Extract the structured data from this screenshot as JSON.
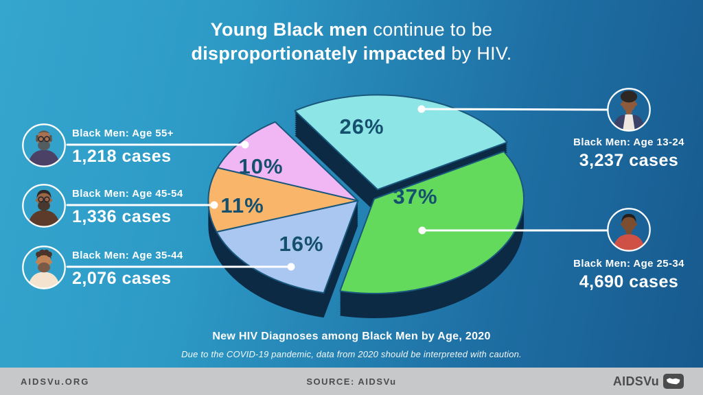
{
  "page": {
    "title_line1_bold": "Young Black men",
    "title_line1_rest": " continue to be",
    "title_line2_bold": "disproportionately impacted",
    "title_line2_rest": " by HIV."
  },
  "caption": {
    "heading": "New HIV Diagnoses among Black Men by Age, 2020",
    "note": "Due to the COVID-19 pandemic, data from 2020 should be interpreted with caution."
  },
  "footer": {
    "site": "AIDSVu.ORG",
    "source": "SOURCE: AIDSVu",
    "brand": "AIDSVu",
    "brand_icon": "us-map-logo-icon"
  },
  "colors": {
    "background_top_left": "#35a6ce",
    "background_bottom_right": "#17598d",
    "pie_side": "#0c2a44",
    "pie_stroke": "#19577d",
    "percent_label": "#15506e",
    "callout_line": "#ffffff",
    "text": "#ffffff",
    "footer_bg": "#c7c8c9",
    "footer_text": "#4c4c4c"
  },
  "chart_data": {
    "type": "pie",
    "title": "New HIV Diagnoses among Black Men by Age, 2020",
    "note": "Due to the COVID-19 pandemic, data from 2020 should be interpreted with caution.",
    "unit": "cases",
    "legend_position": "callout labels around chart",
    "style": "3d-exploded-pie",
    "slices": [
      {
        "label": "Black Men: Age 13-24",
        "percent": 26,
        "cases": 3237,
        "color": "#8de5e6"
      },
      {
        "label": "Black Men: Age 25-34",
        "percent": 37,
        "cases": 4690,
        "color": "#63da5c"
      },
      {
        "label": "Black Men: Age 35-44",
        "percent": 16,
        "cases": 2076,
        "color": "#aac7f2"
      },
      {
        "label": "Black Men: Age 45-54",
        "percent": 11,
        "cases": 1336,
        "color": "#f9b569"
      },
      {
        "label": "Black Men: Age 55+",
        "percent": 10,
        "cases": 1218,
        "color": "#f0b7f4"
      }
    ]
  },
  "callouts": {
    "left": [
      {
        "label": "Black Men: Age 55+",
        "value": "1,218 cases",
        "avatar": {
          "skin": "#a9714f",
          "hair": "#5c554f",
          "hairstyle": "balding",
          "glasses": true,
          "beard": "#555c60",
          "shirt": "#4b4166"
        }
      },
      {
        "label": "Black Men: Age 45-54",
        "value": "1,336 cases",
        "avatar": {
          "skin": "#9c6647",
          "hair": "#2f2a28",
          "hairstyle": "short",
          "glasses": true,
          "beard": "#46382f",
          "shirt": "#5d3b2a"
        }
      },
      {
        "label": "Black Men: Age 35-44",
        "value": "2,076 cases",
        "avatar": {
          "skin": "#c08356",
          "hair": "#4a342c",
          "hairstyle": "curly",
          "glasses": false,
          "beard": "#7a5a44",
          "shirt": "#f4e3cf"
        }
      }
    ],
    "right": [
      {
        "label": "Black Men: Age 13-24",
        "value": "3,237 cases",
        "avatar": {
          "skin": "#8d5a3b",
          "hair": "#2e2622",
          "hairstyle": "afro",
          "glasses": false,
          "beard": null,
          "shirt": "#efe7df",
          "jacket": "#3c4168"
        }
      },
      {
        "label": "Black Men: Age 25-34",
        "value": "4,690 cases",
        "avatar": {
          "skin": "#7d4d30",
          "hair": "#241f1c",
          "hairstyle": "short",
          "glasses": false,
          "beard": null,
          "shirt": "#cf5146"
        }
      }
    ]
  }
}
